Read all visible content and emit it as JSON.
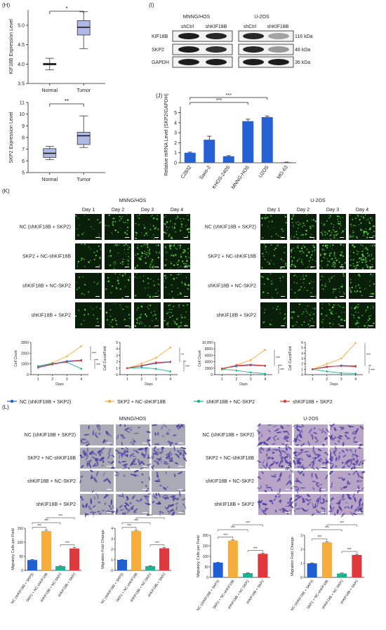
{
  "panels": {
    "H": "(H)",
    "I": "(I)",
    "J": "(J)",
    "K": "(K)",
    "L": "(L)"
  },
  "colors": {
    "box_fill": "#aeb9e6",
    "blue": "#1f5fd1",
    "orange": "#f6ad3c",
    "teal": "#1bb38f",
    "red": "#e0383c",
    "bar_blue": "#2560d5",
    "fluor_bg": "#0a1f0a",
    "fluor_dot": "#5fd84a",
    "stain_bg_a": "#a9aab6",
    "stain_bg_b": "#b7a4c6",
    "stain_dark": "#4a3aa2"
  },
  "panel_H": {
    "top": {
      "ylabel": "KIF18B Expression Level",
      "yticks": [
        "3.5",
        "4.0",
        "4.5",
        "5.0"
      ],
      "ylim": [
        3.5,
        5.4
      ],
      "groups": [
        {
          "label": "Normal",
          "min": 3.85,
          "q1": 3.98,
          "median": 4.0,
          "q3": 4.02,
          "max": 4.15
        },
        {
          "label": "Tumor",
          "min": 4.4,
          "q1": 4.75,
          "median": 4.95,
          "q3": 5.12,
          "max": 5.35
        }
      ],
      "sig": "*"
    },
    "bottom": {
      "ylabel": "SKP2 Expression Level",
      "yticks": [
        "5",
        "6",
        "7",
        "8",
        "9",
        "10",
        "11"
      ],
      "ylim": [
        5,
        11
      ],
      "groups": [
        {
          "label": "Normal",
          "min": 6.1,
          "q1": 6.3,
          "median": 6.65,
          "q3": 7.05,
          "max": 7.25
        },
        {
          "label": "Tumor",
          "min": 7.15,
          "q1": 7.4,
          "median": 8.15,
          "q3": 8.45,
          "max": 9.85
        }
      ],
      "sig": "**"
    }
  },
  "panel_I": {
    "cell_lines": [
      "MNNG/HOS",
      "U-2OS"
    ],
    "lanes": [
      "shCtrl",
      "shKIF18B",
      "shCtrl",
      "shKIF18B"
    ],
    "rows": [
      {
        "name": "KIF18B",
        "kda": "116 kDa",
        "intensity": [
          0.95,
          0.9,
          0.9,
          0.35
        ]
      },
      {
        "name": "SKP2",
        "kda": "48 kDa",
        "intensity": [
          0.95,
          0.85,
          0.9,
          0.4
        ]
      },
      {
        "name": "GAPDH",
        "kda": "36 kDa",
        "intensity": [
          0.95,
          0.95,
          0.95,
          0.95
        ]
      }
    ]
  },
  "panel_J": {
    "type": "bar",
    "ylabel": "Relative mRNA Level (SKP2/GAPDH)",
    "yticks": [
      "0",
      "1",
      "2",
      "3",
      "4",
      "5"
    ],
    "ylim": [
      0,
      5.6
    ],
    "categories": [
      "C28/I2",
      "Saos-2",
      "KHOS-240S",
      "MNNG-HOS",
      "U2OS",
      "MG-63"
    ],
    "values": [
      1.0,
      2.3,
      0.65,
      4.15,
      4.55,
      0.05
    ],
    "errors": [
      0.06,
      0.35,
      0.06,
      0.2,
      0.12,
      0.02
    ],
    "sig": [
      "***",
      "***"
    ]
  },
  "panel_K": {
    "cell_lines": [
      "MNNG/HOS",
      "U-2OS"
    ],
    "days": [
      "Day 1",
      "Day 2",
      "Day 3",
      "Day 4"
    ],
    "conditions": [
      "NC (shKIF18B + SKP2)",
      "SKP2 + NC-shKIF18B",
      "shKIF18B + NC-SKP2",
      "shKIF18B + SKP2"
    ],
    "density": {
      "MNNG": [
        [
          0.25,
          0.45,
          0.6,
          0.7
        ],
        [
          0.35,
          0.6,
          0.85,
          0.95
        ],
        [
          0.2,
          0.35,
          0.4,
          0.45
        ],
        [
          0.2,
          0.35,
          0.5,
          0.55
        ]
      ],
      "U2OS": [
        [
          0.35,
          0.6,
          0.8,
          0.85
        ],
        [
          0.45,
          0.75,
          0.95,
          1.0
        ],
        [
          0.25,
          0.4,
          0.45,
          0.4
        ],
        [
          0.25,
          0.45,
          0.55,
          0.6
        ]
      ]
    },
    "charts": [
      {
        "type": "line",
        "xlabel": "Days",
        "ylabel": "Cell Count",
        "x": [
          1,
          2,
          3,
          4
        ],
        "ylim": [
          0,
          3000
        ],
        "yticks": [
          "0",
          "1000",
          "2000",
          "3000"
        ],
        "series": [
          {
            "name": "NC (shKIF18B + SKP2)",
            "values": [
              700,
              1000,
              1250,
              1350
            ]
          },
          {
            "name": "SKP2 + NC-shKIF18B",
            "values": [
              750,
              1100,
              1700,
              2650
            ]
          },
          {
            "name": "shKIF18B + NC-SKP2",
            "values": [
              800,
              1050,
              1150,
              550
            ]
          },
          {
            "name": "shKIF18B + SKP2",
            "values": [
              650,
              950,
              1200,
              1300
            ]
          }
        ],
        "sig": [
          "***",
          "***",
          "***"
        ]
      },
      {
        "type": "line",
        "xlabel": "Days",
        "ylabel": "Cell Count/Fold",
        "x": [
          1,
          2,
          3,
          4
        ],
        "ylim": [
          0,
          5
        ],
        "yticks": [
          "0",
          "1",
          "2",
          "3",
          "4",
          "5"
        ],
        "series": [
          {
            "name": "NC (shKIF18B + SKP2)",
            "values": [
              1,
              1.35,
              1.75,
              1.95
            ]
          },
          {
            "name": "SKP2 + NC-shKIF18B",
            "values": [
              1,
              1.7,
              2.6,
              4.2
            ]
          },
          {
            "name": "shKIF18B + NC-SKP2",
            "values": [
              1,
              1.1,
              0.9,
              0.5
            ]
          },
          {
            "name": "shKIF18B + SKP2",
            "values": [
              1,
              1.4,
              1.9,
              2.0
            ]
          }
        ],
        "sig": [
          "**",
          "**",
          "***"
        ]
      },
      {
        "type": "line",
        "xlabel": "Days",
        "ylabel": "Cell Count",
        "x": [
          1,
          2,
          3,
          4
        ],
        "ylim": [
          0,
          10000
        ],
        "yticks": [
          "0",
          "2000",
          "4000",
          "6000",
          "8000",
          "10,000"
        ],
        "series": [
          {
            "name": "NC (shKIF18B + SKP2)",
            "values": [
              1800,
              2600,
              2900,
              2700
            ]
          },
          {
            "name": "SKP2 + NC-shKIF18B",
            "values": [
              1500,
              3000,
              4500,
              7700
            ]
          },
          {
            "name": "shKIF18B + NC-SKP2",
            "values": [
              1700,
              1300,
              700,
              300
            ]
          },
          {
            "name": "shKIF18B + SKP2",
            "values": [
              1900,
              2900,
              3100,
              2800
            ]
          }
        ],
        "sig": [
          "***",
          "***",
          "***"
        ]
      },
      {
        "type": "line",
        "xlabel": "Days",
        "ylabel": "Cell Count/Fold",
        "x": [
          1,
          2,
          3,
          4
        ],
        "ylim": [
          0,
          6
        ],
        "yticks": [
          "0",
          "1",
          "2",
          "3",
          "4",
          "5",
          "6"
        ],
        "series": [
          {
            "name": "NC (shKIF18B + SKP2)",
            "values": [
              1,
              1.4,
              1.7,
              1.6
            ]
          },
          {
            "name": "SKP2 + NC-shKIF18B",
            "values": [
              1,
              2.0,
              3.0,
              5.9
            ]
          },
          {
            "name": "shKIF18B + NC-SKP2",
            "values": [
              1,
              0.6,
              0.3,
              0.2
            ]
          },
          {
            "name": "shKIF18B + SKP2",
            "values": [
              1,
              1.5,
              1.6,
              1.5
            ]
          }
        ],
        "sig": [
          "***",
          "**",
          "***"
        ]
      }
    ],
    "legend": [
      "NC (shKIF18B + SKP2)",
      "SKP2 + NC-shKIF18B",
      "shKIF18B + NC-SKP2",
      "shKIF18B + SKP2"
    ]
  },
  "panel_L": {
    "cell_lines": [
      "MNNG/HOS",
      "U-2OS"
    ],
    "conditions": [
      "NC (shKIF18B + SKP2)",
      "SKP2 + NC-shKIF18B",
      "shKIF18B + NC-SKP2",
      "shKIF18B + SKP2"
    ],
    "density": {
      "MNNG": [
        0.35,
        0.75,
        0.2,
        0.55
      ],
      "U2OS": [
        0.55,
        0.85,
        0.35,
        0.6
      ]
    },
    "charts": [
      {
        "type": "bar",
        "ylabel": "Migratory Cells per Field",
        "ylim": [
          0,
          150
        ],
        "yticks": [
          "0",
          "50",
          "100",
          "150"
        ],
        "categories": [
          "NC (shKIF18B + SKP2)",
          "SKP2 + NC-shKIF18B",
          "shKIF18B + NC-SKP2",
          "shKIF18B + SKP2"
        ],
        "values": [
          37,
          140,
          15,
          78
        ],
        "errors": [
          2,
          3,
          2,
          3
        ]
      },
      {
        "type": "bar",
        "ylabel": "Migration Fold Change",
        "ylim": [
          0,
          4
        ],
        "yticks": [
          "0",
          "1",
          "2",
          "3",
          "4"
        ],
        "categories": [
          "NC (shKIF18B + SKP2)",
          "SKP2 + NC-shKIF18B",
          "shKIF18B + NC-SKP2",
          "shKIF18B + SKP2"
        ],
        "values": [
          1.0,
          3.75,
          0.4,
          2.1
        ],
        "errors": [
          0.04,
          0.06,
          0.04,
          0.06
        ]
      },
      {
        "type": "bar",
        "ylabel": "Migratory Cells per Field",
        "ylim": [
          0,
          200
        ],
        "yticks": [
          "0",
          "50",
          "100",
          "150",
          "200"
        ],
        "categories": [
          "NC (shKIF18B + SKP2)",
          "SKP2 + NC-shKIF18B",
          "shKIF18B + NC-SKP2",
          "shKIF18B + SKP2"
        ],
        "values": [
          70,
          175,
          20,
          112
        ],
        "errors": [
          2,
          3,
          2,
          3
        ]
      },
      {
        "type": "bar",
        "ylabel": "Migration Fold Change",
        "ylim": [
          0,
          3
        ],
        "yticks": [
          "0",
          "1",
          "2",
          "3"
        ],
        "categories": [
          "NC (shKIF18B + SKP2)",
          "SKP2 + NC-shKIF18B",
          "shKIF18B + NC-SKP2",
          "shKIF18B + SKP2"
        ],
        "values": [
          1.0,
          2.5,
          0.28,
          1.6
        ],
        "errors": [
          0.03,
          0.05,
          0.03,
          0.05
        ]
      }
    ],
    "sig": "***"
  }
}
